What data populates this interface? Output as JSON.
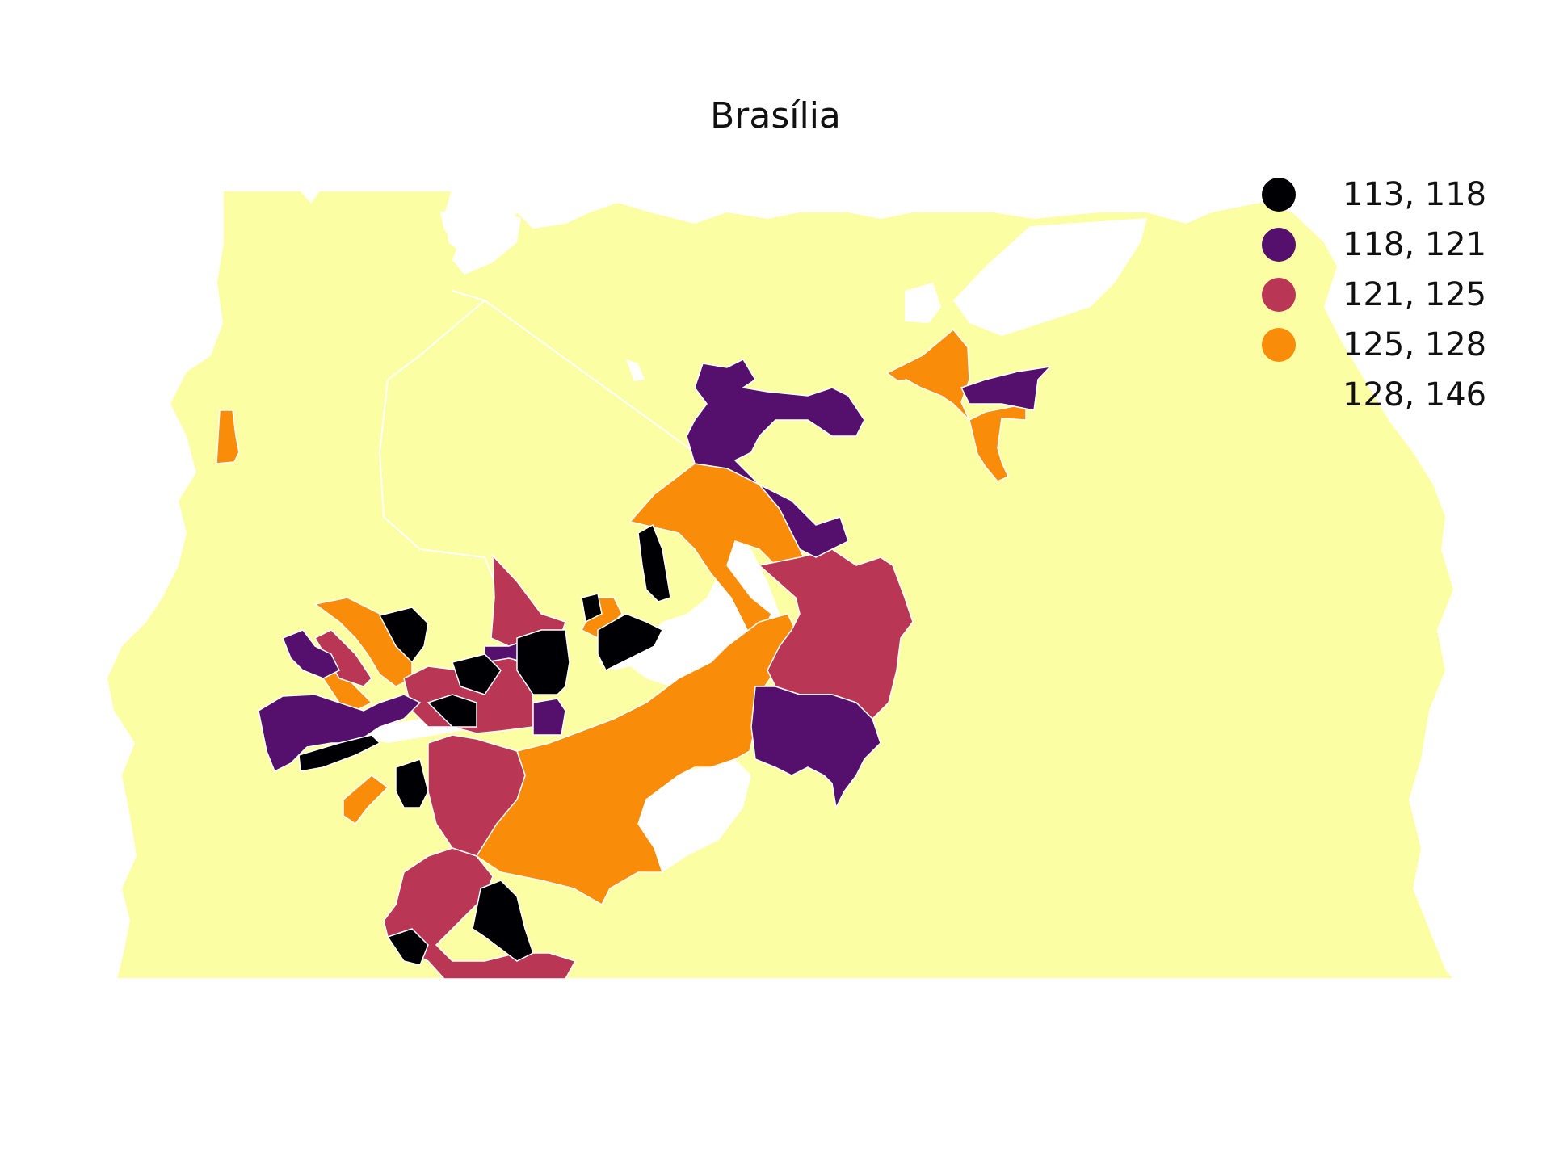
{
  "title": "Brasília",
  "colors": {
    "background_region": "#fcfea4",
    "boundary": "#ffffff"
  },
  "legend": {
    "items": [
      {
        "label": "113, 118",
        "color": "#000004"
      },
      {
        "label": "118, 121",
        "color": "#550f6d"
      },
      {
        "label": "121, 125",
        "color": "#ba3655"
      },
      {
        "label": "125, 128",
        "color": "#f98c09"
      },
      {
        "label": "128, 146",
        "color": "#fcfea4"
      }
    ]
  }
}
